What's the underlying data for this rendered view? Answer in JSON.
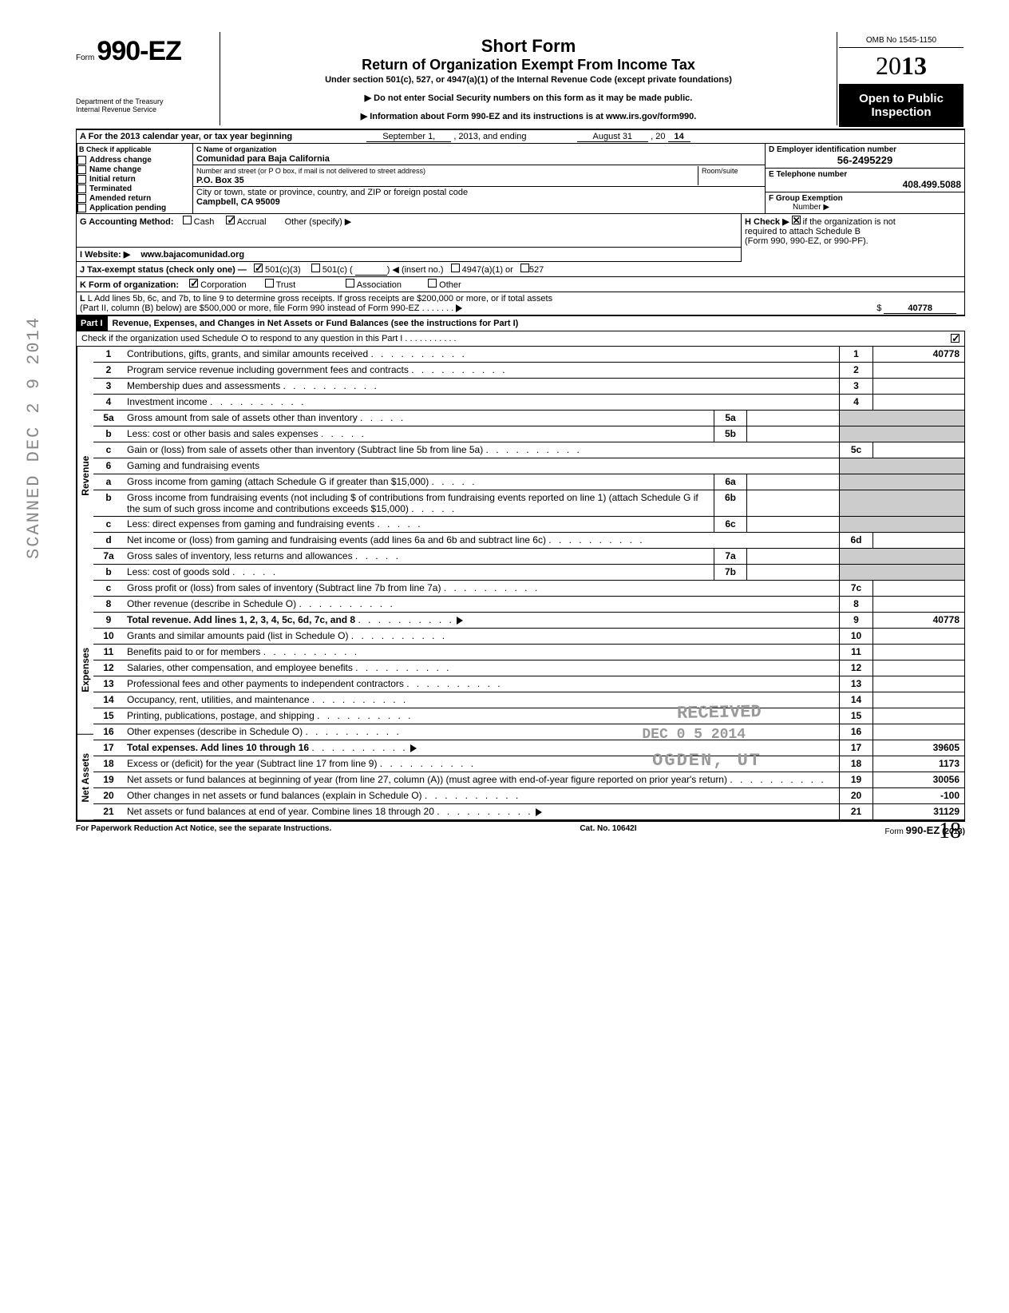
{
  "form": {
    "prefix": "Form",
    "number": "990-EZ",
    "dept1": "Department of the Treasury",
    "dept2": "Internal Revenue Service"
  },
  "title": {
    "h1": "Short Form",
    "h2": "Return of Organization Exempt From Income Tax",
    "sub": "Under section 501(c), 527, or 4947(a)(1) of the Internal Revenue Code (except private foundations)",
    "arrow1": "▶ Do not enter Social Security numbers on this form as it may be made public.",
    "arrow2": "▶ Information about Form 990-EZ and its instructions is at www.irs.gov/form990."
  },
  "yearbox": {
    "omb": "OMB No 1545-1150",
    "year_outline": "20",
    "year_bold": "13",
    "open1": "Open to Public",
    "open2": "Inspection"
  },
  "lineA": {
    "label": "A For the 2013 calendar year, or tax year beginning",
    "begin": "September 1,",
    "mid": ", 2013, and ending",
    "end": "August 31",
    "yr": ", 20",
    "yrval": "14"
  },
  "colB": {
    "hdr": "B  Check if applicable",
    "items": [
      "Address change",
      "Name change",
      "Initial return",
      "Terminated",
      "Amended return",
      "Application pending"
    ]
  },
  "colC": {
    "hdr": "C  Name of organization",
    "name": "Comunidad para Baja California",
    "addr_lbl": "Number and street (or P O  box, if mail is not delivered to street address)",
    "room_lbl": "Room/suite",
    "addr": "P.O. Box 35",
    "city_lbl": "City or town, state or province, country, and ZIP or foreign postal code",
    "city": "Campbell, CA 95009"
  },
  "colD": {
    "d_lbl": "D Employer identification number",
    "d_val": "56-2495229",
    "e_lbl": "E  Telephone number",
    "e_val": "408.499.5088",
    "f_lbl": "F  Group Exemption",
    "f_lbl2": "Number ▶"
  },
  "rowG": {
    "g": "G  Accounting Method:",
    "cash": "Cash",
    "accrual": "Accrual",
    "other": "Other (specify) ▶",
    "h": "H  Check ▶",
    "h2": "if the organization is not",
    "h3": "required to attach Schedule B",
    "h4": "(Form 990, 990-EZ, or 990-PF)."
  },
  "rowI": {
    "i": "I   Website: ▶",
    "val": "www.bajacomunidad.org"
  },
  "rowJ": {
    "j": "J  Tax-exempt status (check only one) —",
    "a": "501(c)(3)",
    "b": "501(c) (",
    "c": ") ◀ (insert no.)",
    "d": "4947(a)(1) or",
    "e": "527"
  },
  "rowK": {
    "k": "K  Form of organization:",
    "a": "Corporation",
    "b": "Trust",
    "c": "Association",
    "d": "Other"
  },
  "rowL": {
    "l1": "L  Add lines 5b, 6c, and 7b, to line 9 to determine gross receipts. If gross receipts are $200,000 or more, or if total assets",
    "l2": "(Part II, column (B) below) are $500,000 or more, file Form 990 instead of Form 990-EZ",
    "amt": "40778"
  },
  "part1": {
    "label": "Part I",
    "title": "Revenue, Expenses, and Changes in Net Assets or Fund Balances (see the instructions for Part I)",
    "check": "Check if the organization used Schedule O to respond to any question in this Part I"
  },
  "vtabs": {
    "rev": "Revenue",
    "exp": "Expenses",
    "net": "Net Assets"
  },
  "lines": [
    {
      "n": "1",
      "t": "Contributions, gifts, grants, and similar amounts received",
      "box": "1",
      "amt": "40778"
    },
    {
      "n": "2",
      "t": "Program service revenue including government fees and contracts",
      "box": "2",
      "amt": ""
    },
    {
      "n": "3",
      "t": "Membership dues and assessments",
      "box": "3",
      "amt": ""
    },
    {
      "n": "4",
      "t": "Investment income",
      "box": "4",
      "amt": ""
    },
    {
      "n": "5a",
      "t": "Gross amount from sale of assets other than inventory",
      "mid": "5a"
    },
    {
      "n": "b",
      "t": "Less: cost or other basis and sales expenses",
      "mid": "5b"
    },
    {
      "n": "c",
      "t": "Gain or (loss) from sale of assets other than inventory (Subtract line 5b from line 5a)",
      "box": "5c",
      "amt": ""
    },
    {
      "n": "6",
      "t": "Gaming and fundraising events"
    },
    {
      "n": "a",
      "t": "Gross income from gaming (attach Schedule G if greater than $15,000)",
      "mid": "6a"
    },
    {
      "n": "b",
      "t": "Gross income from fundraising events (not including  $                           of contributions from fundraising events reported on line 1) (attach Schedule G if the sum of such gross income and contributions exceeds $15,000)",
      "mid": "6b"
    },
    {
      "n": "c",
      "t": "Less: direct expenses from gaming and fundraising events",
      "mid": "6c"
    },
    {
      "n": "d",
      "t": "Net income or (loss) from gaming and fundraising events (add lines 6a and 6b and subtract line 6c)",
      "box": "6d",
      "amt": ""
    },
    {
      "n": "7a",
      "t": "Gross sales of inventory, less returns and allowances",
      "mid": "7a"
    },
    {
      "n": "b",
      "t": "Less: cost of goods sold",
      "mid": "7b"
    },
    {
      "n": "c",
      "t": "Gross profit or (loss) from sales of inventory (Subtract line 7b from line 7a)",
      "box": "7c",
      "amt": ""
    },
    {
      "n": "8",
      "t": "Other revenue (describe in Schedule O)",
      "box": "8",
      "amt": ""
    },
    {
      "n": "9",
      "t": "Total revenue. Add lines 1, 2, 3, 4, 5c, 6d, 7c, and 8",
      "box": "9",
      "amt": "40778",
      "bold": true,
      "arrow": true
    },
    {
      "n": "10",
      "t": "Grants and similar amounts paid (list in Schedule O)",
      "box": "10",
      "amt": ""
    },
    {
      "n": "11",
      "t": "Benefits paid to or for members",
      "box": "11",
      "amt": ""
    },
    {
      "n": "12",
      "t": "Salaries, other compensation, and employee benefits",
      "box": "12",
      "amt": ""
    },
    {
      "n": "13",
      "t": "Professional fees and other payments to independent contractors",
      "box": "13",
      "amt": ""
    },
    {
      "n": "14",
      "t": "Occupancy, rent, utilities, and maintenance",
      "box": "14",
      "amt": ""
    },
    {
      "n": "15",
      "t": "Printing, publications, postage, and shipping",
      "box": "15",
      "amt": ""
    },
    {
      "n": "16",
      "t": "Other expenses (describe in Schedule O)",
      "box": "16",
      "amt": ""
    },
    {
      "n": "17",
      "t": "Total expenses. Add lines 10 through 16",
      "box": "17",
      "amt": "39605",
      "bold": true,
      "arrow": true
    },
    {
      "n": "18",
      "t": "Excess or (deficit) for the year (Subtract line 17 from line 9)",
      "box": "18",
      "amt": "1173"
    },
    {
      "n": "19",
      "t": "Net assets or fund balances at beginning of year (from line 27, column (A)) (must agree with end-of-year figure reported on prior year's return)",
      "box": "19",
      "amt": "30056"
    },
    {
      "n": "20",
      "t": "Other changes in net assets or fund balances (explain in Schedule O)",
      "box": "20",
      "amt": "-100"
    },
    {
      "n": "21",
      "t": "Net assets or fund balances at end of year. Combine lines 18 through 20",
      "box": "21",
      "amt": "31129",
      "arrow": true
    }
  ],
  "footer": {
    "left": "For Paperwork Reduction Act Notice, see the separate Instructions.",
    "mid": "Cat. No. 10642I",
    "right": "Form 990-EZ (2013)"
  },
  "stamps": {
    "recv": "RECEIVED",
    "date": "DEC 0 5 2014",
    "ogden": "OGDEN, UT",
    "side": "SCANNED DEC 2 9 2014"
  },
  "pagenum": "18"
}
